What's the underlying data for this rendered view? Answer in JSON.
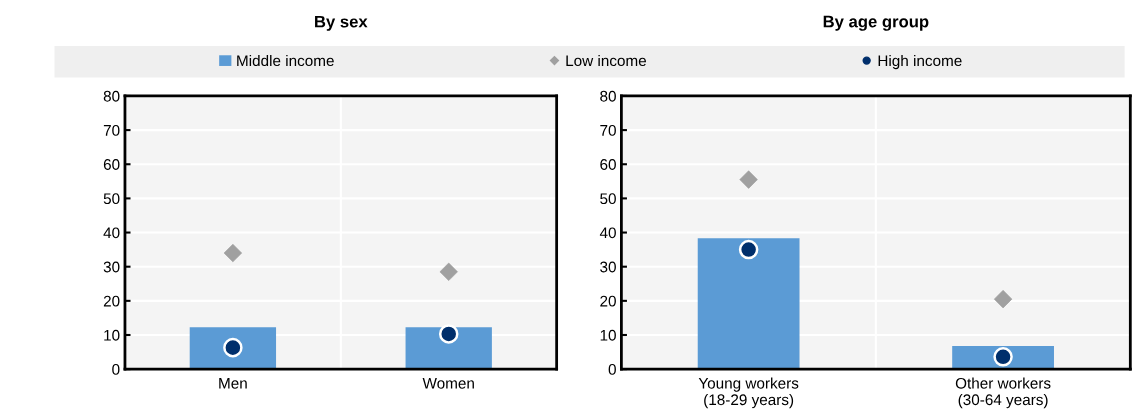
{
  "chart_data": [
    {
      "type": "bar",
      "title": "By sex",
      "categories": [
        "Men",
        "Women"
      ],
      "ylim": [
        0,
        80
      ],
      "yticks": [
        0,
        10,
        20,
        30,
        40,
        50,
        60,
        70,
        80
      ],
      "grid": true,
      "legend": "top",
      "series": [
        {
          "name": "Middle income",
          "color": "#5b9bd5",
          "values": [
            12.3,
            12.3
          ]
        },
        {
          "name": "Low income",
          "type": "scatter",
          "marker": "diamond",
          "color": "#a0a0a0",
          "values": [
            34,
            28.5
          ]
        },
        {
          "name": "High income",
          "type": "scatter",
          "marker": "circle",
          "color": "#002f6c",
          "values": [
            6.3,
            10.3
          ]
        }
      ]
    },
    {
      "type": "bar",
      "title": "By age group",
      "categories": [
        "Young workers\n(18-29 years)",
        "Other workers\n(30-64 years)"
      ],
      "ylim": [
        0,
        80
      ],
      "yticks": [
        0,
        10,
        20,
        30,
        40,
        50,
        60,
        70,
        80
      ],
      "grid": true,
      "legend": "top",
      "series": [
        {
          "name": "Middle income",
          "color": "#5b9bd5",
          "values": [
            38.3,
            6.8
          ]
        },
        {
          "name": "Low income",
          "type": "scatter",
          "marker": "diamond",
          "color": "#a0a0a0",
          "values": [
            55.5,
            20.5
          ]
        },
        {
          "name": "High income",
          "type": "scatter",
          "marker": "circle",
          "color": "#002f6c",
          "values": [
            35,
            3.6
          ]
        }
      ]
    }
  ]
}
